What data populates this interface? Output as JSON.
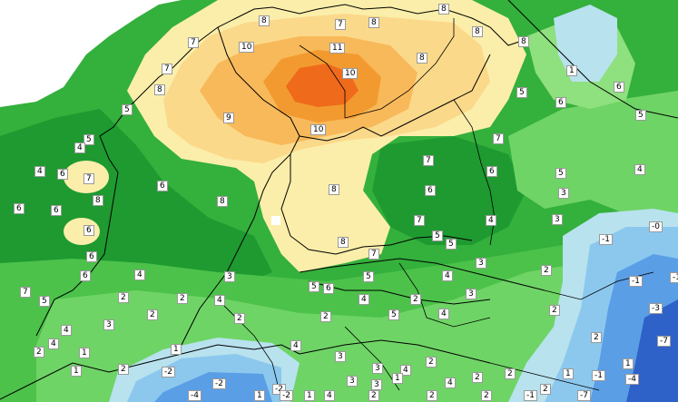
{
  "palette": {
    "white": "#ffffff",
    "green_dark": "#1e9a30",
    "green": "#34b03c",
    "green_mid": "#4cc24a",
    "green_light": "#6fd466",
    "green_pale": "#8fe07e",
    "yellow_pale": "#fbeeaa",
    "yellow": "#fbd98a",
    "orange_light": "#f8b95a",
    "orange": "#f29a30",
    "orange_dark": "#ef6a1a",
    "blue_pale": "#b8e2ee",
    "blue_light": "#8cc8ee",
    "blue": "#5a9ee6",
    "blue_dark": "#2e62c8",
    "coast": "#000000"
  },
  "values": [
    {
      "t": "8"
    },
    {
      "t": "7"
    },
    {
      "t": "8"
    },
    {
      "t": "8"
    },
    {
      "t": "8"
    },
    {
      "t": "8"
    },
    {
      "t": "10"
    },
    {
      "t": "7"
    },
    {
      "t": "11"
    },
    {
      "t": "8"
    },
    {
      "t": "7"
    },
    {
      "t": "5"
    },
    {
      "t": "1"
    },
    {
      "t": "10"
    },
    {
      "t": "6"
    },
    {
      "t": "8"
    },
    {
      "t": "6"
    },
    {
      "t": "5"
    },
    {
      "t": "9"
    },
    {
      "t": "5"
    },
    {
      "t": "5"
    },
    {
      "t": "4"
    },
    {
      "t": "10"
    },
    {
      "t": "7"
    },
    {
      "t": "4"
    },
    {
      "t": "6"
    },
    {
      "t": "7"
    },
    {
      "t": "7"
    },
    {
      "t": "6"
    },
    {
      "t": "5"
    },
    {
      "t": "4"
    },
    {
      "t": "6"
    },
    {
      "t": "8"
    },
    {
      "t": "8"
    },
    {
      "t": "6"
    },
    {
      "t": "3"
    },
    {
      "t": "6"
    },
    {
      "t": "6"
    },
    {
      "t": "8"
    },
    {
      "t": "4"
    },
    {
      "t": "3"
    },
    {
      "t": "-0"
    },
    {
      "t": "6"
    },
    {
      "t": "7"
    },
    {
      "t": "5"
    },
    {
      "t": "-1"
    },
    {
      "t": "8"
    },
    {
      "t": "7"
    },
    {
      "t": "5"
    },
    {
      "t": "6"
    },
    {
      "t": "3"
    },
    {
      "t": "2"
    },
    {
      "t": "-1"
    },
    {
      "t": "-1"
    },
    {
      "t": "7"
    },
    {
      "t": "5"
    },
    {
      "t": "3"
    },
    {
      "t": "5"
    },
    {
      "t": "4"
    },
    {
      "t": "4"
    },
    {
      "t": "6"
    },
    {
      "t": "2"
    },
    {
      "t": "2"
    },
    {
      "t": "4"
    },
    {
      "t": "5"
    },
    {
      "t": "6"
    },
    {
      "t": "3"
    },
    {
      "t": "-3"
    },
    {
      "t": "2"
    },
    {
      "t": "2"
    },
    {
      "t": "2"
    },
    {
      "t": "2"
    },
    {
      "t": "5"
    },
    {
      "t": "4"
    },
    {
      "t": "2"
    },
    {
      "t": "4"
    },
    {
      "t": "3"
    },
    {
      "t": "-7"
    },
    {
      "t": "4"
    },
    {
      "t": "4"
    },
    {
      "t": "1"
    },
    {
      "t": "2"
    },
    {
      "t": "1"
    },
    {
      "t": "4"
    },
    {
      "t": "3"
    },
    {
      "t": "2"
    },
    {
      "t": "3"
    },
    {
      "t": "1"
    },
    {
      "t": "1"
    },
    {
      "t": "2"
    },
    {
      "t": "4"
    },
    {
      "t": "-4"
    },
    {
      "t": "-2"
    },
    {
      "t": "2"
    },
    {
      "t": "4"
    },
    {
      "t": "2"
    },
    {
      "t": "2"
    },
    {
      "t": "1"
    },
    {
      "t": "-2"
    },
    {
      "t": "-2"
    },
    {
      "t": "3"
    },
    {
      "t": "3"
    },
    {
      "t": "1"
    },
    {
      "t": "2"
    },
    {
      "t": "-1"
    },
    {
      "t": "-4"
    },
    {
      "t": "-2"
    },
    {
      "t": "1"
    },
    {
      "t": "1"
    },
    {
      "t": "4"
    },
    {
      "t": "2"
    },
    {
      "t": "2"
    },
    {
      "t": "2"
    },
    {
      "t": "-1"
    },
    {
      "t": "-7"
    }
  ]
}
